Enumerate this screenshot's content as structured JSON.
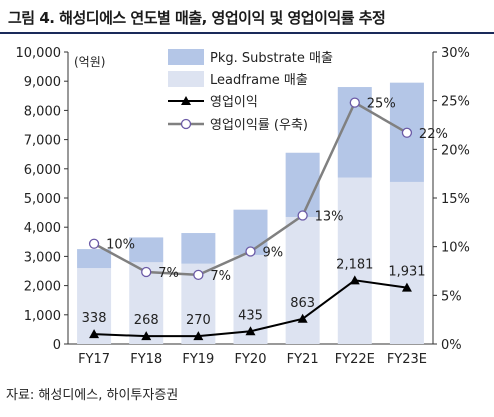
{
  "title": "그림 4. 해성디에스 연도별 매출, 영업이익 및 영업이익률 추정",
  "source": "자료: 해성디에스, 하이투자증권",
  "chart_data": {
    "type": "bar",
    "categories": [
      "FY17",
      "FY18",
      "FY19",
      "FY20",
      "FY21",
      "FY22E",
      "FY23E"
    ],
    "unit_label": "(억원)",
    "ylim": [
      0,
      10000
    ],
    "y2lim": [
      0,
      30
    ],
    "yticks": [
      "0",
      "1,000",
      "2,000",
      "3,000",
      "4,000",
      "5,000",
      "6,000",
      "7,000",
      "8,000",
      "9,000",
      "10,000"
    ],
    "y2ticks": [
      "0%",
      "5%",
      "10%",
      "15%",
      "20%",
      "25%",
      "30%"
    ],
    "bars": {
      "stacked": true,
      "series": [
        {
          "name": "Leadframe 매출",
          "values": [
            2600,
            2800,
            2750,
            3050,
            4350,
            5700,
            5550
          ],
          "color": "#dde3f1"
        },
        {
          "name": "Pkg. Substrate 매출",
          "values": [
            650,
            850,
            1050,
            1550,
            2200,
            3100,
            3400
          ],
          "color": "#b4c6e7"
        }
      ]
    },
    "lines": [
      {
        "name": "영업이익",
        "axis": "left",
        "values": [
          338,
          268,
          270,
          435,
          863,
          2181,
          1931
        ],
        "labels": [
          "338",
          "268",
          "270",
          "435",
          "863",
          "2,181",
          "1,931"
        ],
        "color": "#000000",
        "marker": "triangle"
      },
      {
        "name": "영업이익률 (우축)",
        "axis": "right",
        "values": [
          10.3,
          7.4,
          7.1,
          9.5,
          13.2,
          24.8,
          21.7
        ],
        "labels": [
          "10%",
          "7%",
          "7%",
          "9%",
          "13%",
          "25%",
          "22%"
        ],
        "color": "#808080",
        "marker": "circle"
      }
    ],
    "legend": [
      {
        "label": "Pkg. Substrate 매출",
        "kind": "bar",
        "color": "#b4c6e7"
      },
      {
        "label": "Leadframe 매출",
        "kind": "bar",
        "color": "#dde3f1"
      },
      {
        "label": "영업이익",
        "kind": "line-triangle",
        "color": "#000000"
      },
      {
        "label": "영업이익률 (우축)",
        "kind": "line-circle",
        "color": "#808080"
      }
    ],
    "legend_position": "top-center"
  }
}
